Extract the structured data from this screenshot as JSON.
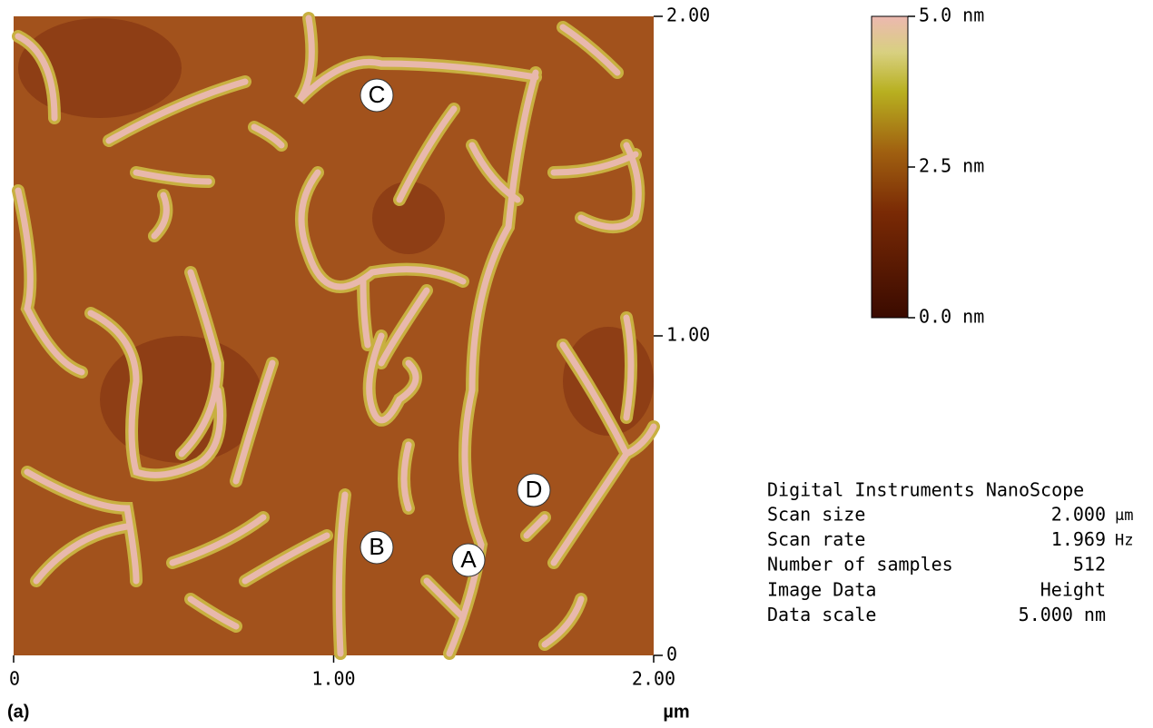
{
  "image": {
    "x_ticks": [
      "0",
      "1.00",
      "2.00"
    ],
    "y_ticks": [
      "0",
      "1.00",
      "2.00"
    ],
    "unit": "µm",
    "panel_label": "(a)",
    "markers": [
      "A",
      "B",
      "C",
      "D"
    ]
  },
  "colorbar": {
    "labels": [
      "5.0 nm",
      "2.5 nm",
      "0.0 nm"
    ]
  },
  "info": {
    "title": "Digital Instruments NanoScope",
    "rows": [
      [
        "Scan size",
        "2.000",
        "µm"
      ],
      [
        "Scan rate",
        "1.969",
        "Hz"
      ],
      [
        "Number of samples",
        "512"
      ],
      [
        "Image Data",
        "Height"
      ],
      [
        "Data scale",
        "5.000 nm"
      ]
    ]
  }
}
